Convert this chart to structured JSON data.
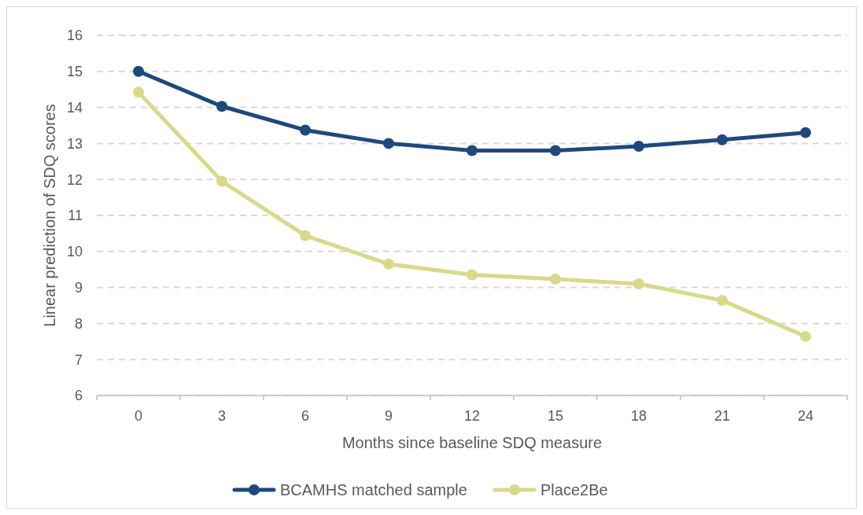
{
  "chart_data": {
    "type": "line",
    "xlabel": "Months since baseline SDQ measure",
    "ylabel": "Linear prediction of SDQ scores",
    "categories": [
      "0",
      "3",
      "6",
      "9",
      "12",
      "15",
      "18",
      "21",
      "24"
    ],
    "series": [
      {
        "name": "BCAMHS matched sample",
        "color": "#1f497d",
        "values": [
          15.0,
          14.03,
          13.37,
          13.0,
          12.8,
          12.8,
          12.92,
          13.1,
          13.3
        ]
      },
      {
        "name": "Place2Be",
        "color": "#d8d98a",
        "values": [
          14.42,
          11.95,
          10.44,
          9.65,
          9.35,
          9.23,
          9.1,
          8.64,
          7.64
        ]
      }
    ],
    "ylim": [
      6,
      16
    ],
    "yticks": [
      6,
      7,
      8,
      9,
      10,
      11,
      12,
      13,
      14,
      15,
      16
    ],
    "grid": "y",
    "legend": "bottom",
    "marker": "circle",
    "line_style": "solid"
  }
}
